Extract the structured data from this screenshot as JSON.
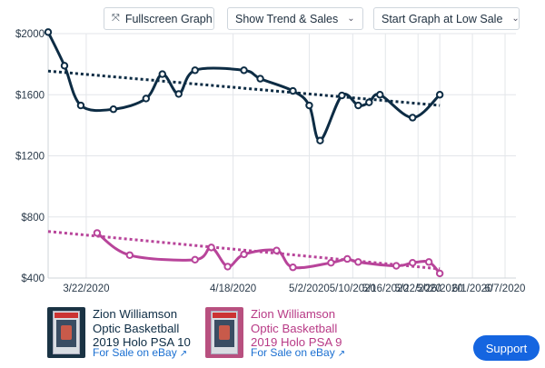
{
  "toolbar": {
    "fullscreen_label": "Fullscreen Graph",
    "trend_select_value": "Show Trend & Sales",
    "start_select_value": "Start Graph at Low Sale"
  },
  "chart_data": {
    "type": "line",
    "ylim": [
      400,
      2000
    ],
    "xlim": [
      0,
      86
    ],
    "y_ticks": [
      {
        "value": 2000,
        "label": "$2000"
      },
      {
        "value": 1600,
        "label": "$1600"
      },
      {
        "value": 1200,
        "label": "$1200"
      },
      {
        "value": 800,
        "label": "$800"
      },
      {
        "value": 400,
        "label": "$400"
      }
    ],
    "x_ticks": [
      {
        "value": 7,
        "label": "3/22/2020"
      },
      {
        "value": 34,
        "label": "4/18/2020"
      },
      {
        "value": 48,
        "label": "5/2/2020"
      },
      {
        "value": 56,
        "label": "5/10/2020"
      },
      {
        "value": 62,
        "label": "5/16/2020"
      },
      {
        "value": 68,
        "label": "5/22/2020"
      },
      {
        "value": 72,
        "label": "5/26/2020"
      },
      {
        "value": 78,
        "label": "6/1/2020"
      },
      {
        "value": 84,
        "label": "6/7/2020"
      }
    ],
    "series": [
      {
        "name": "Zion Williamson Optic Basketball 2019 Holo PSA 10",
        "color": "#0d2c44",
        "points": [
          [
            0,
            2010
          ],
          [
            3,
            1790
          ],
          [
            6,
            1530
          ],
          [
            12,
            1505
          ],
          [
            18,
            1575
          ],
          [
            21,
            1735
          ],
          [
            24,
            1605
          ],
          [
            27,
            1760
          ],
          [
            36,
            1760
          ],
          [
            39,
            1705
          ],
          [
            45,
            1625
          ],
          [
            48,
            1530
          ],
          [
            50,
            1300
          ],
          [
            54,
            1595
          ],
          [
            57,
            1530
          ],
          [
            59,
            1550
          ],
          [
            61,
            1600
          ],
          [
            67,
            1450
          ],
          [
            72,
            1600
          ]
        ],
        "trend": [
          [
            0,
            1755
          ],
          [
            72,
            1530
          ]
        ]
      },
      {
        "name": "Zion Williamson Optic Basketball 2019 Holo PSA 9",
        "color": "#b8449a",
        "points": [
          [
            9,
            695
          ],
          [
            15,
            550
          ],
          [
            27,
            520
          ],
          [
            30,
            600
          ],
          [
            33,
            475
          ],
          [
            36,
            555
          ],
          [
            42,
            580
          ],
          [
            45,
            470
          ],
          [
            52,
            500
          ],
          [
            55,
            525
          ],
          [
            57,
            505
          ],
          [
            64,
            480
          ],
          [
            67,
            500
          ],
          [
            70,
            505
          ],
          [
            72,
            430
          ]
        ],
        "trend": [
          [
            0,
            705
          ],
          [
            72,
            460
          ]
        ]
      }
    ]
  },
  "legend": [
    {
      "title_line1": "Zion Williamson",
      "title_line2": "Optic Basketball",
      "title_line3": "2019 Holo PSA 10",
      "link": "For Sale on eBay"
    },
    {
      "title_line1": "Zion Williamson",
      "title_line2": "Optic Basketball",
      "title_line3": "2019 Holo PSA 9",
      "link": "For Sale on eBay"
    }
  ],
  "support_label": "Support"
}
